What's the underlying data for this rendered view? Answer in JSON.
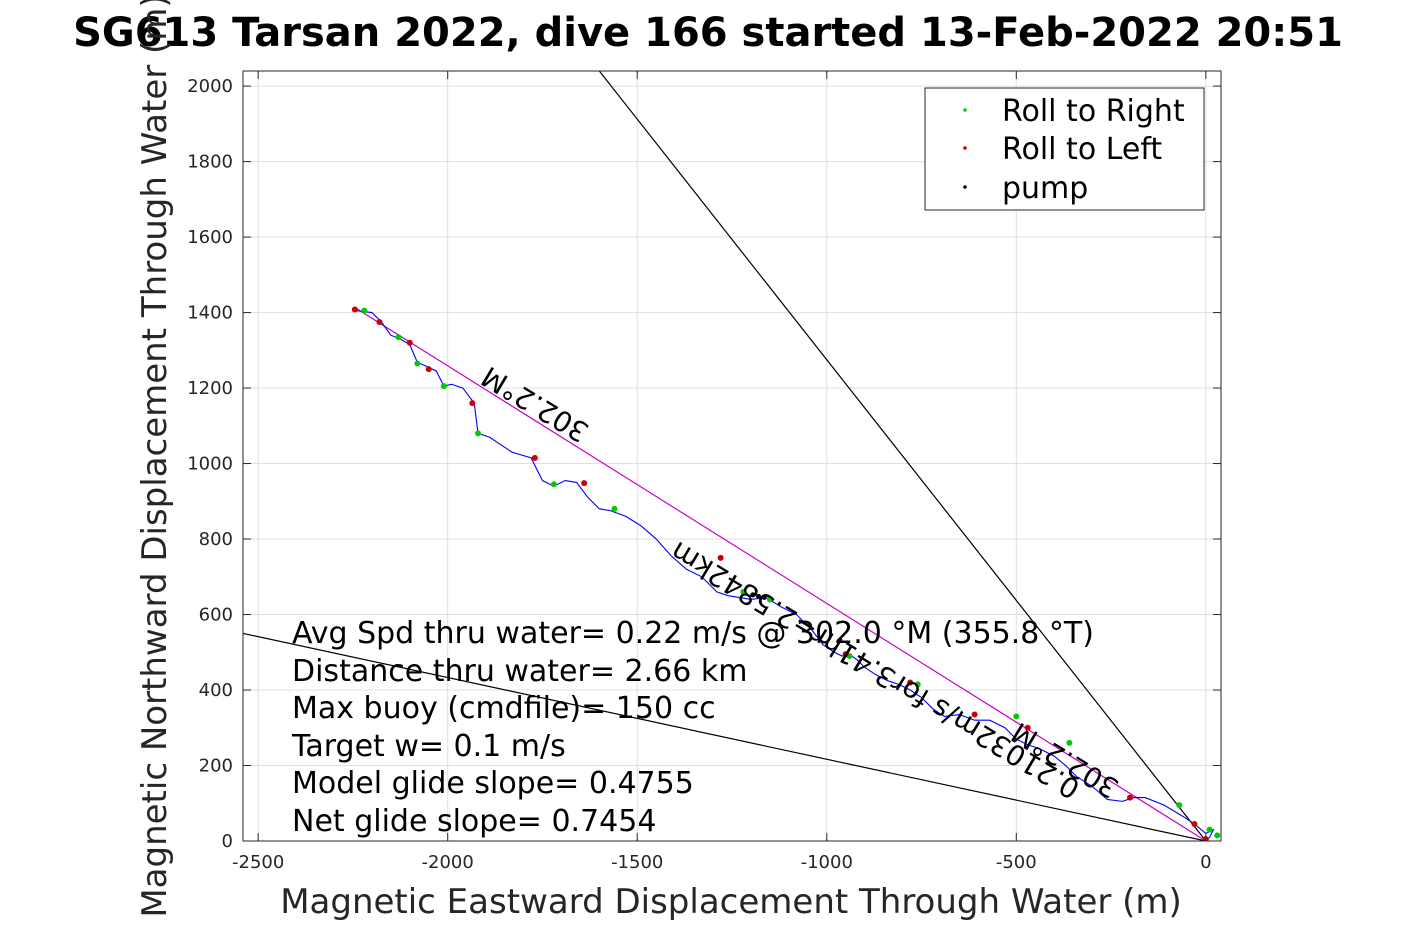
{
  "chart_data": {
    "type": "line",
    "title": "SG613 Tarsan 2022, dive 166 started 13-Feb-2022 20:51",
    "xlabel": "Magnetic Eastward Displacement Through Water (m)",
    "ylabel": "Magnetic Northward Displacement Through Water (m)",
    "xlim": [
      -2540,
      40
    ],
    "ylim": [
      0,
      2040
    ],
    "xticks": [
      -2500,
      -2000,
      -1500,
      -1000,
      -500,
      0
    ],
    "yticks": [
      0,
      200,
      400,
      600,
      800,
      1000,
      1200,
      1400,
      1600,
      1800,
      2000
    ],
    "grid": true,
    "legend_position": "top-right",
    "legend": [
      {
        "label": "Roll to Right",
        "color": "#00cc00"
      },
      {
        "label": "Roll to Left",
        "color": "#cc0000"
      },
      {
        "label": "pump",
        "color": "#000000"
      }
    ],
    "track": {
      "name": "glider track",
      "color": "#0000ff",
      "x": [
        -2240,
        -2200,
        -2175,
        -2150,
        -2125,
        -2100,
        -2080,
        -2050,
        -2030,
        -2010,
        -1990,
        -1960,
        -1930,
        -1920,
        -1890,
        -1860,
        -1830,
        -1780,
        -1750,
        -1720,
        -1690,
        -1660,
        -1630,
        -1600,
        -1570,
        -1530,
        -1490,
        -1450,
        -1410,
        -1370,
        -1330,
        -1290,
        -1260,
        -1230,
        -1200,
        -1160,
        -1120,
        -1080,
        -1040,
        -1010,
        -980,
        -960,
        -940,
        -920,
        -900,
        -870,
        -840,
        -810,
        -780,
        -750,
        -720,
        -690,
        -650,
        -610,
        -570,
        -530,
        -500,
        -470,
        -440,
        -400,
        -370,
        -340,
        -300,
        -260,
        -220,
        -190,
        -160,
        -110,
        -60,
        -30,
        0,
        20,
        10,
        0
      ],
      "y": [
        1405,
        1400,
        1375,
        1340,
        1330,
        1315,
        1268,
        1255,
        1245,
        1205,
        1210,
        1200,
        1160,
        1080,
        1070,
        1050,
        1030,
        1015,
        955,
        940,
        955,
        950,
        910,
        880,
        875,
        860,
        835,
        800,
        755,
        720,
        700,
        660,
        650,
        645,
        640,
        645,
        620,
        600,
        560,
        520,
        500,
        490,
        495,
        480,
        460,
        440,
        425,
        415,
        400,
        380,
        350,
        330,
        335,
        320,
        320,
        300,
        270,
        255,
        245,
        225,
        200,
        170,
        145,
        110,
        105,
        115,
        115,
        95,
        65,
        45,
        20,
        30,
        10,
        0
      ]
    },
    "reference_lines": [
      {
        "name": "heading line",
        "x": [
          0,
          -2240
        ],
        "y": [
          0,
          1410
        ],
        "color": "#cc00cc"
      },
      {
        "name": "glide bound steep",
        "x": [
          0,
          -1600
        ],
        "y": [
          0,
          2040
        ],
        "color": "#000000"
      },
      {
        "name": "glide bound shallow",
        "x": [
          0,
          -2540
        ],
        "y": [
          0,
          550
        ],
        "color": "#000000"
      }
    ],
    "markers": {
      "roll_right": {
        "x": [
          -2220,
          -2130,
          -2080,
          -2010,
          -1920,
          -1720,
          -1560,
          -1220,
          -1150,
          -940,
          -760,
          -500,
          -360,
          -70,
          10,
          30
        ],
        "y": [
          1405,
          1335,
          1265,
          1205,
          1080,
          945,
          880,
          660,
          640,
          490,
          415,
          330,
          260,
          95,
          30,
          15
        ]
      },
      "roll_left": {
        "x": [
          -2245,
          -2180,
          -2100,
          -2050,
          -1935,
          -1770,
          -1640,
          -1280,
          -950,
          -780,
          -610,
          -470,
          -200,
          -30,
          0
        ],
        "y": [
          1408,
          1375,
          1320,
          1250,
          1160,
          1015,
          948,
          750,
          495,
          420,
          335,
          300,
          115,
          45,
          5
        ]
      },
      "pump": {
        "x": [
          -1195,
          -1180,
          -1165
        ],
        "y": [
          652,
          648,
          645
        ]
      }
    },
    "annotations": {
      "heading_label_1": "302.2°M",
      "heading_label_2": "302.2°M",
      "current_label": "0.21032m/s for3.41hr=2.5842km",
      "summary": [
        "Avg Spd thru water=  0.22 m/s @ 302.0 °M (355.8 °T)",
        "Distance thru water=  2.66 km",
        "Max buoy (cmdfile)= 150 cc",
        "Target w= 0.1 m/s",
        "Model glide slope= 0.4755",
        "Net glide slope= 0.7454"
      ]
    }
  }
}
